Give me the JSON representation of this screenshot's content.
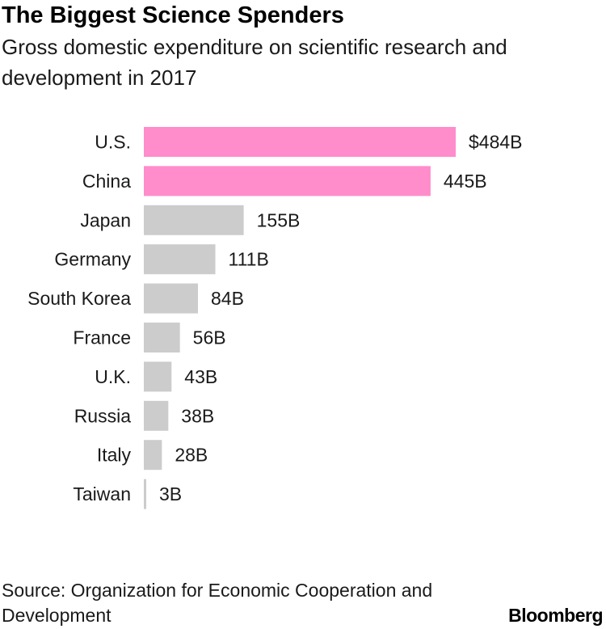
{
  "title": "The Biggest Science Spenders",
  "subtitle": "Gross domestic expenditure on scientific research and development in 2017",
  "source": "Source: Organization for Economic Cooperation and Development",
  "logo": "Bloomberg",
  "colors": {
    "highlight": "#ff8ccb",
    "default": "#cccccc"
  },
  "chart_data": {
    "type": "bar",
    "orientation": "horizontal",
    "categories": [
      "U.S.",
      "China",
      "Japan",
      "Germany",
      "South Korea",
      "France",
      "U.K.",
      "Russia",
      "Italy",
      "Taiwan"
    ],
    "values": [
      484,
      445,
      155,
      111,
      84,
      56,
      43,
      38,
      28,
      3
    ],
    "value_labels": [
      "$484B",
      "445B",
      "155B",
      "111B",
      "84B",
      "56B",
      "43B",
      "38B",
      "28B",
      "3B"
    ],
    "highlighted": [
      "U.S.",
      "China"
    ],
    "unit": "billions of US dollars",
    "grid": false
  }
}
